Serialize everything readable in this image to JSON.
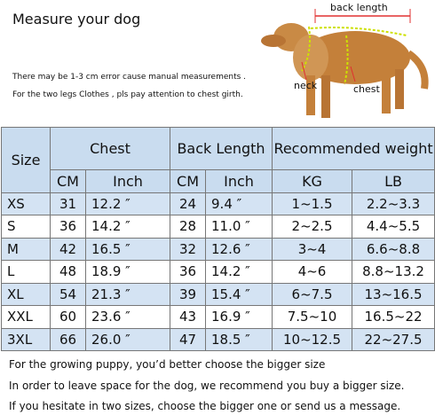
{
  "header": {
    "title": "Measure your dog",
    "notes": [
      "There may be 1-3 cm error cause manual measurements .",
      "For the two legs Clothes , pls pay attention to chest girth."
    ]
  },
  "dog_labels": {
    "back_length": "back length",
    "neck": "neck",
    "chest": "chest"
  },
  "table": {
    "header": [
      "Size",
      "Chest",
      "Back  Length",
      "Recommended weight"
    ],
    "subheader": [
      "CM",
      "Inch",
      "CM",
      "Inch",
      "KG",
      "LB"
    ],
    "rows": [
      [
        "XS",
        "31",
        "12.2  ″",
        "24",
        "9.4  ″",
        "1~1.5",
        "2.2~3.3"
      ],
      [
        "S",
        "36",
        "14.2  ″",
        "28",
        "11.0  ″",
        "2~2.5",
        "4.4~5.5"
      ],
      [
        "M",
        "42",
        "16.5  ″",
        "32",
        "12.6  ″",
        "3~4",
        "6.6~8.8"
      ],
      [
        "L",
        "48",
        "18.9  ″",
        "36",
        "14.2  ″",
        "4~6",
        "8.8~13.2"
      ],
      [
        "XL",
        "54",
        "21.3  ″",
        "39",
        "15.4  ″",
        "6~7.5",
        "13~16.5"
      ],
      [
        "XXL",
        "60",
        "23.6  ″",
        "43",
        "16.9  ″",
        "7.5~10",
        "16.5~22"
      ],
      [
        "3XL",
        "66",
        "26.0  ″",
        "47",
        "18.5  ″",
        "10~12.5",
        "22~27.5"
      ]
    ]
  },
  "footer": [
    "For the growing puppy, you’d better choose the bigger size",
    "In order to leave space for the dog, we recommend you buy a bigger size.",
    "If you  hesitate in two sizes, choose the bigger one or send us a message."
  ]
}
